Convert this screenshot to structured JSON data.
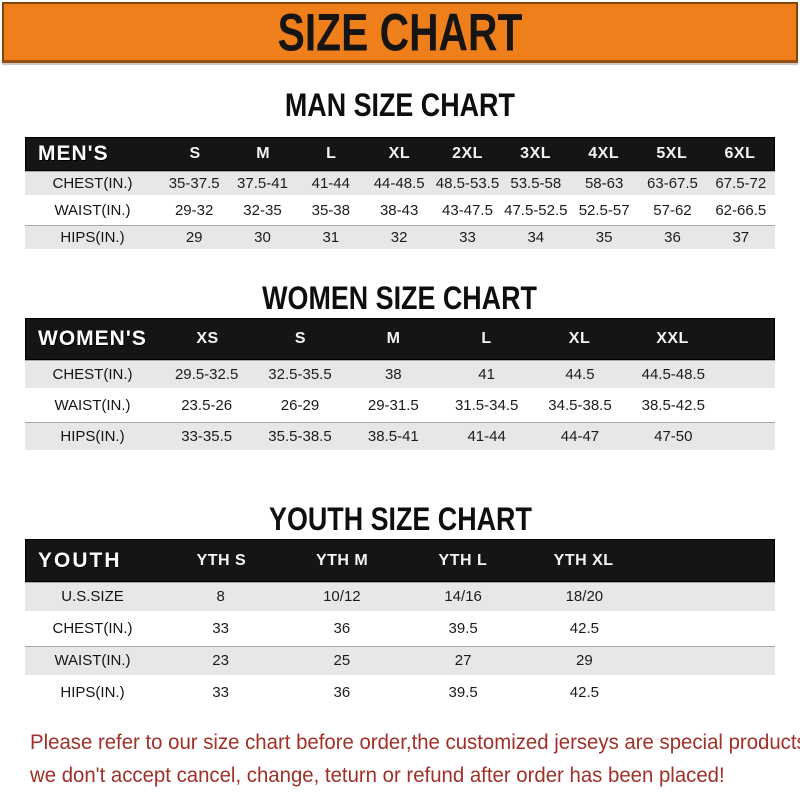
{
  "banner": {
    "title": "SIZE CHART",
    "bg_color": "#EE7F1B",
    "text_color": "#171513"
  },
  "sections": [
    {
      "name": "men",
      "heading": "MAN SIZE CHART",
      "header_label": "MEN'S",
      "columns": [
        "S",
        "M",
        "L",
        "XL",
        "2XL",
        "3XL",
        "4XL",
        "5XL",
        "6XL"
      ],
      "rows": [
        {
          "label": "CHEST(IN.)",
          "values": [
            "35-37.5",
            "37.5-41",
            "41-44",
            "44-48.5",
            "48.5-53.5",
            "53.5-58",
            "58-63",
            "63-67.5",
            "67.5-72"
          ]
        },
        {
          "label": "WAIST(IN.)",
          "values": [
            "29-32",
            "32-35",
            "35-38",
            "38-43",
            "43-47.5",
            "47.5-52.5",
            "52.5-57",
            "57-62",
            "62-66.5"
          ]
        },
        {
          "label": "HIPS(IN.)",
          "values": [
            "29",
            "30",
            "31",
            "32",
            "33",
            "34",
            "35",
            "36",
            "37"
          ]
        }
      ]
    },
    {
      "name": "women",
      "heading": "WOMEN SIZE CHART",
      "header_label": "WOMEN'S",
      "columns": [
        "XS",
        "S",
        "M",
        "L",
        "XL",
        "XXL"
      ],
      "rows": [
        {
          "label": "CHEST(IN.)",
          "values": [
            "29.5-32.5",
            "32.5-35.5",
            "38",
            "41",
            "44.5",
            "44.5-48.5"
          ]
        },
        {
          "label": "WAIST(IN.)",
          "values": [
            "23.5-26",
            "26-29",
            "29-31.5",
            "31.5-34.5",
            "34.5-38.5",
            "38.5-42.5"
          ]
        },
        {
          "label": "HIPS(IN.)",
          "values": [
            "33-35.5",
            "35.5-38.5",
            "38.5-41",
            "41-44",
            "44-47",
            "47-50"
          ]
        }
      ]
    },
    {
      "name": "youth",
      "heading": "YOUTH SIZE CHART",
      "header_label": "YOUTH",
      "columns": [
        "YTH S",
        "YTH M",
        "YTH L",
        "YTH XL"
      ],
      "rows": [
        {
          "label": "U.S.SIZE",
          "values": [
            "8",
            "10/12",
            "14/16",
            "18/20"
          ]
        },
        {
          "label": "CHEST(IN.)",
          "values": [
            "33",
            "36",
            "39.5",
            "42.5"
          ]
        },
        {
          "label": "WAIST(IN.)",
          "values": [
            "23",
            "25",
            "27",
            "29"
          ]
        },
        {
          "label": "HIPS(IN.)",
          "values": [
            "33",
            "36",
            "39.5",
            "42.5"
          ]
        }
      ]
    }
  ],
  "footer": {
    "color": "#A03028",
    "line1": "Please refer to our size chart before order,the customized jerseys are special products,",
    "line2": "we don't accept cancel, change, teturn or refund after order has been placed!"
  }
}
